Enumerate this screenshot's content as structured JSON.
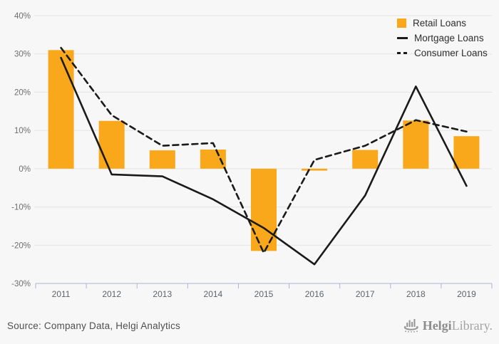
{
  "chart_data": {
    "type": "combo",
    "title": "",
    "categories": [
      "2011",
      "2012",
      "2013",
      "2014",
      "2015",
      "2016",
      "2017",
      "2018",
      "2019"
    ],
    "series": [
      {
        "name": "Retail Loans",
        "type": "bar",
        "color": "#F9A81B",
        "values": [
          31,
          12.5,
          4.8,
          5,
          -21.5,
          -0.5,
          4.9,
          12.6,
          8.5
        ]
      },
      {
        "name": "Mortgage Loans",
        "type": "line",
        "line_style": "solid",
        "color": "#1A1A1A",
        "values": [
          29,
          -1.5,
          -2,
          -8,
          -15.5,
          -25,
          -7,
          21.5,
          -4.5
        ]
      },
      {
        "name": "Consumer Loans",
        "type": "line",
        "line_style": "dashed",
        "color": "#1A1A1A",
        "values": [
          31.6,
          14,
          6,
          6.7,
          -22,
          2.3,
          6,
          12.7,
          9.7
        ]
      }
    ],
    "ylim": [
      -30,
      40
    ],
    "ytick_step": 10,
    "ytick_suffix": "%",
    "grid": true,
    "legend_position": "top-right",
    "xlabel": "",
    "ylabel": ""
  },
  "footer": {
    "source": "Source: Company Data, Helgi Analytics",
    "logo": {
      "icon": "helgi-ship-icon",
      "brand_bold": "Helgi",
      "brand_light": "Library."
    }
  },
  "colors": {
    "background": "#F7F7F7",
    "accent_orange": "#F9A81B",
    "line_black": "#1A1A1A",
    "gridline": "#E4E4E4",
    "axis": "#ABB7CE",
    "tick_label": "#6E6E6E",
    "year_label": "#5F6368",
    "legend_text": "#2E2E2E",
    "source_text": "#4F4F4F",
    "logo_gray": "#979797"
  }
}
